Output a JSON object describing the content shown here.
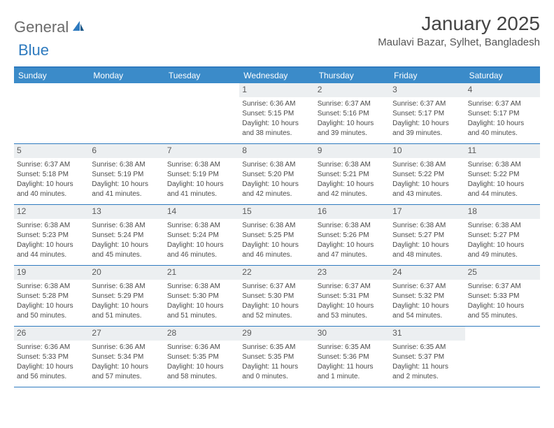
{
  "logo": {
    "text1": "General",
    "text2": "Blue"
  },
  "title": "January 2025",
  "location": "Maulavi Bazar, Sylhet, Bangladesh",
  "colors": {
    "header_bar": "#3b8bc9",
    "border": "#2f7bbf",
    "daynum_bg": "#eceff1",
    "text": "#4a4a4a",
    "logo_gray": "#6b6b6b",
    "logo_blue": "#2f7bbf"
  },
  "weekdays": [
    "Sunday",
    "Monday",
    "Tuesday",
    "Wednesday",
    "Thursday",
    "Friday",
    "Saturday"
  ],
  "weeks": [
    [
      {
        "n": "",
        "l": [
          "",
          "",
          "",
          ""
        ]
      },
      {
        "n": "",
        "l": [
          "",
          "",
          "",
          ""
        ]
      },
      {
        "n": "",
        "l": [
          "",
          "",
          "",
          ""
        ]
      },
      {
        "n": "1",
        "l": [
          "Sunrise: 6:36 AM",
          "Sunset: 5:15 PM",
          "Daylight: 10 hours",
          "and 38 minutes."
        ]
      },
      {
        "n": "2",
        "l": [
          "Sunrise: 6:37 AM",
          "Sunset: 5:16 PM",
          "Daylight: 10 hours",
          "and 39 minutes."
        ]
      },
      {
        "n": "3",
        "l": [
          "Sunrise: 6:37 AM",
          "Sunset: 5:17 PM",
          "Daylight: 10 hours",
          "and 39 minutes."
        ]
      },
      {
        "n": "4",
        "l": [
          "Sunrise: 6:37 AM",
          "Sunset: 5:17 PM",
          "Daylight: 10 hours",
          "and 40 minutes."
        ]
      }
    ],
    [
      {
        "n": "5",
        "l": [
          "Sunrise: 6:37 AM",
          "Sunset: 5:18 PM",
          "Daylight: 10 hours",
          "and 40 minutes."
        ]
      },
      {
        "n": "6",
        "l": [
          "Sunrise: 6:38 AM",
          "Sunset: 5:19 PM",
          "Daylight: 10 hours",
          "and 41 minutes."
        ]
      },
      {
        "n": "7",
        "l": [
          "Sunrise: 6:38 AM",
          "Sunset: 5:19 PM",
          "Daylight: 10 hours",
          "and 41 minutes."
        ]
      },
      {
        "n": "8",
        "l": [
          "Sunrise: 6:38 AM",
          "Sunset: 5:20 PM",
          "Daylight: 10 hours",
          "and 42 minutes."
        ]
      },
      {
        "n": "9",
        "l": [
          "Sunrise: 6:38 AM",
          "Sunset: 5:21 PM",
          "Daylight: 10 hours",
          "and 42 minutes."
        ]
      },
      {
        "n": "10",
        "l": [
          "Sunrise: 6:38 AM",
          "Sunset: 5:22 PM",
          "Daylight: 10 hours",
          "and 43 minutes."
        ]
      },
      {
        "n": "11",
        "l": [
          "Sunrise: 6:38 AM",
          "Sunset: 5:22 PM",
          "Daylight: 10 hours",
          "and 44 minutes."
        ]
      }
    ],
    [
      {
        "n": "12",
        "l": [
          "Sunrise: 6:38 AM",
          "Sunset: 5:23 PM",
          "Daylight: 10 hours",
          "and 44 minutes."
        ]
      },
      {
        "n": "13",
        "l": [
          "Sunrise: 6:38 AM",
          "Sunset: 5:24 PM",
          "Daylight: 10 hours",
          "and 45 minutes."
        ]
      },
      {
        "n": "14",
        "l": [
          "Sunrise: 6:38 AM",
          "Sunset: 5:24 PM",
          "Daylight: 10 hours",
          "and 46 minutes."
        ]
      },
      {
        "n": "15",
        "l": [
          "Sunrise: 6:38 AM",
          "Sunset: 5:25 PM",
          "Daylight: 10 hours",
          "and 46 minutes."
        ]
      },
      {
        "n": "16",
        "l": [
          "Sunrise: 6:38 AM",
          "Sunset: 5:26 PM",
          "Daylight: 10 hours",
          "and 47 minutes."
        ]
      },
      {
        "n": "17",
        "l": [
          "Sunrise: 6:38 AM",
          "Sunset: 5:27 PM",
          "Daylight: 10 hours",
          "and 48 minutes."
        ]
      },
      {
        "n": "18",
        "l": [
          "Sunrise: 6:38 AM",
          "Sunset: 5:27 PM",
          "Daylight: 10 hours",
          "and 49 minutes."
        ]
      }
    ],
    [
      {
        "n": "19",
        "l": [
          "Sunrise: 6:38 AM",
          "Sunset: 5:28 PM",
          "Daylight: 10 hours",
          "and 50 minutes."
        ]
      },
      {
        "n": "20",
        "l": [
          "Sunrise: 6:38 AM",
          "Sunset: 5:29 PM",
          "Daylight: 10 hours",
          "and 51 minutes."
        ]
      },
      {
        "n": "21",
        "l": [
          "Sunrise: 6:38 AM",
          "Sunset: 5:30 PM",
          "Daylight: 10 hours",
          "and 51 minutes."
        ]
      },
      {
        "n": "22",
        "l": [
          "Sunrise: 6:37 AM",
          "Sunset: 5:30 PM",
          "Daylight: 10 hours",
          "and 52 minutes."
        ]
      },
      {
        "n": "23",
        "l": [
          "Sunrise: 6:37 AM",
          "Sunset: 5:31 PM",
          "Daylight: 10 hours",
          "and 53 minutes."
        ]
      },
      {
        "n": "24",
        "l": [
          "Sunrise: 6:37 AM",
          "Sunset: 5:32 PM",
          "Daylight: 10 hours",
          "and 54 minutes."
        ]
      },
      {
        "n": "25",
        "l": [
          "Sunrise: 6:37 AM",
          "Sunset: 5:33 PM",
          "Daylight: 10 hours",
          "and 55 minutes."
        ]
      }
    ],
    [
      {
        "n": "26",
        "l": [
          "Sunrise: 6:36 AM",
          "Sunset: 5:33 PM",
          "Daylight: 10 hours",
          "and 56 minutes."
        ]
      },
      {
        "n": "27",
        "l": [
          "Sunrise: 6:36 AM",
          "Sunset: 5:34 PM",
          "Daylight: 10 hours",
          "and 57 minutes."
        ]
      },
      {
        "n": "28",
        "l": [
          "Sunrise: 6:36 AM",
          "Sunset: 5:35 PM",
          "Daylight: 10 hours",
          "and 58 minutes."
        ]
      },
      {
        "n": "29",
        "l": [
          "Sunrise: 6:35 AM",
          "Sunset: 5:35 PM",
          "Daylight: 11 hours",
          "and 0 minutes."
        ]
      },
      {
        "n": "30",
        "l": [
          "Sunrise: 6:35 AM",
          "Sunset: 5:36 PM",
          "Daylight: 11 hours",
          "and 1 minute."
        ]
      },
      {
        "n": "31",
        "l": [
          "Sunrise: 6:35 AM",
          "Sunset: 5:37 PM",
          "Daylight: 11 hours",
          "and 2 minutes."
        ]
      },
      {
        "n": "",
        "l": [
          "",
          "",
          "",
          ""
        ]
      }
    ]
  ]
}
